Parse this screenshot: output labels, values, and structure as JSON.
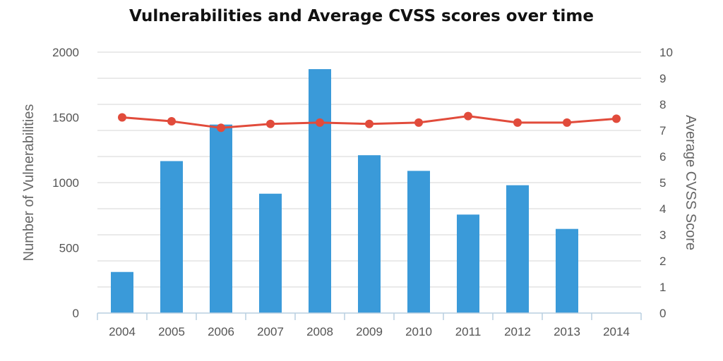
{
  "chart_data": {
    "type": "bar",
    "title": "Vulnerabilities and Average CVSS scores over time",
    "categories": [
      "2004",
      "2005",
      "2006",
      "2007",
      "2008",
      "2009",
      "2010",
      "2011",
      "2012",
      "2013",
      "2014"
    ],
    "series": [
      {
        "type": "bar",
        "axis": "left",
        "color": "#3a9ad9",
        "values": [
          315,
          1165,
          1445,
          915,
          1870,
          1210,
          1090,
          755,
          980,
          645,
          0
        ]
      },
      {
        "type": "line",
        "axis": "right",
        "color": "#e14b3b",
        "values": [
          7.5,
          7.35,
          7.1,
          7.25,
          7.3,
          7.25,
          7.3,
          7.55,
          7.3,
          7.3,
          7.45
        ]
      }
    ],
    "ylabel": "Number of Vulnerabilities",
    "ylabel_right": "Average CVSS Score",
    "ylim": [
      0,
      2000
    ],
    "ylim_right": [
      0,
      10
    ],
    "yticks": [
      "0",
      "500",
      "1000",
      "1500",
      "2000"
    ],
    "yticks_right": [
      "0",
      "1",
      "2",
      "3",
      "4",
      "5",
      "6",
      "7",
      "8",
      "9",
      "10"
    ],
    "grid": true,
    "legend": "none"
  }
}
